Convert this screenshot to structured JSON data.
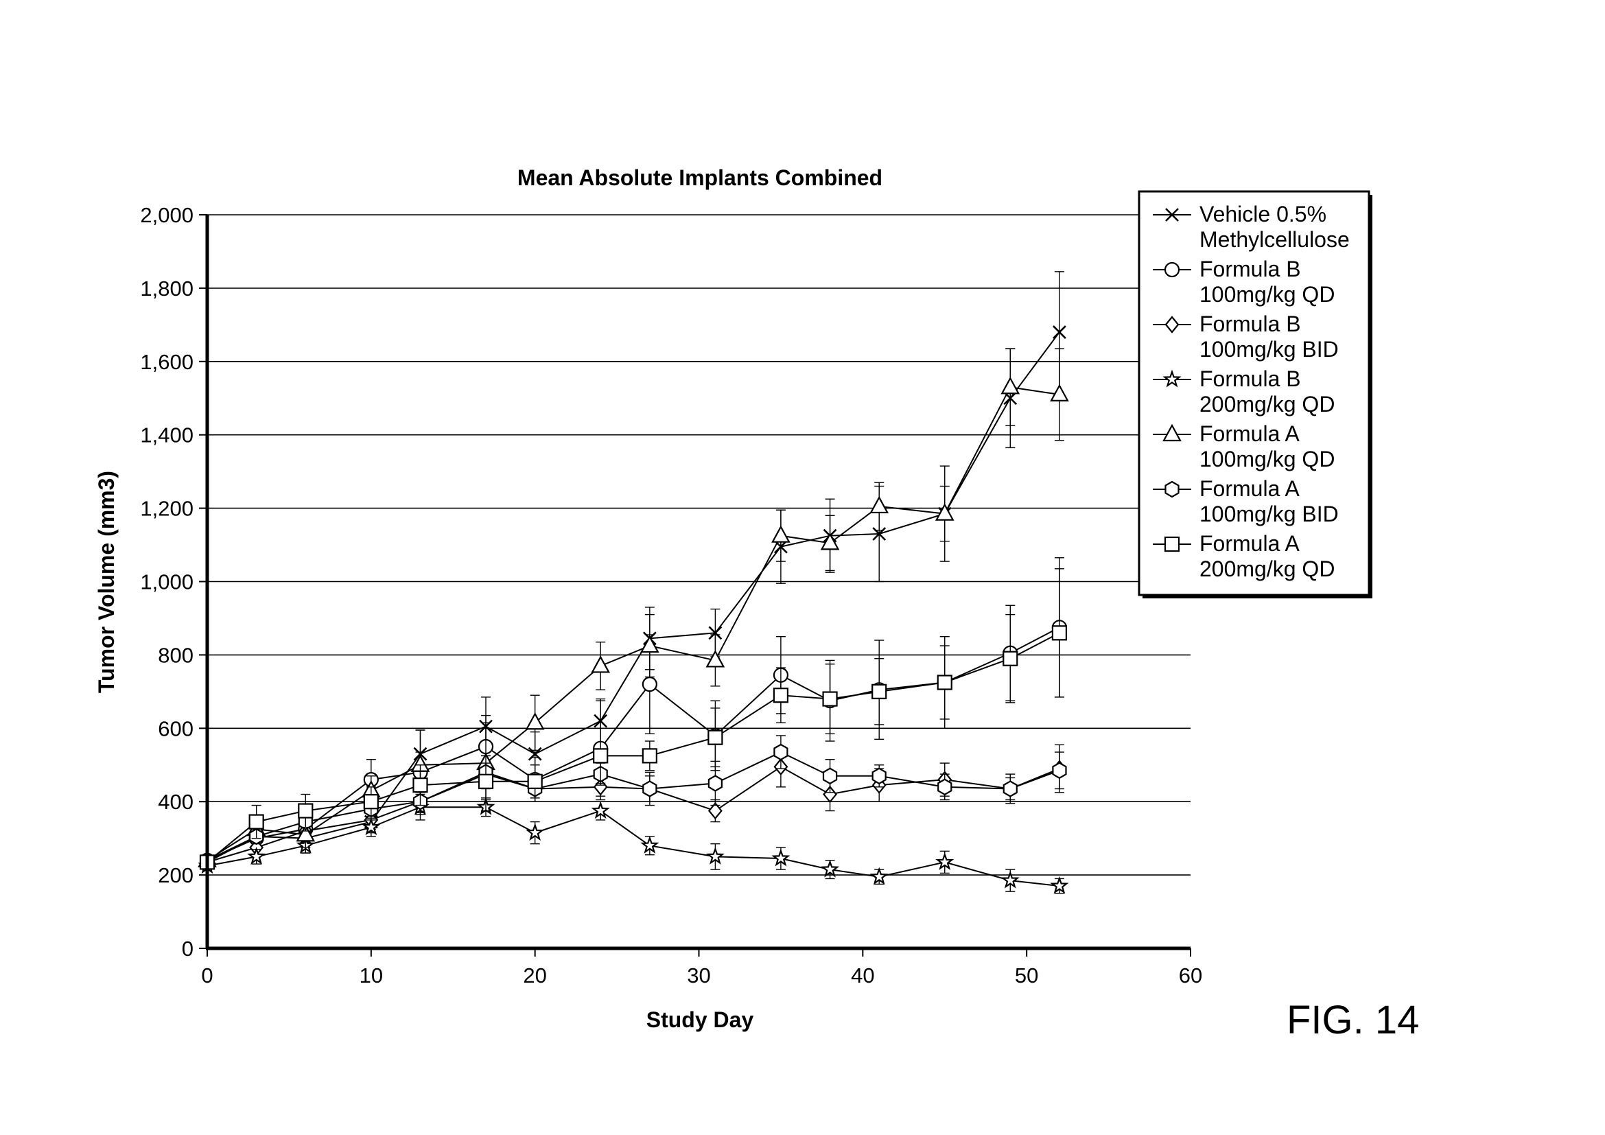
{
  "figure_label": "FIG. 14",
  "chart_data": {
    "type": "line",
    "title": "Mean Absolute Implants Combined",
    "xlabel": "Study Day",
    "ylabel": "Tumor Volume (mm3)",
    "xlim": [
      0,
      60
    ],
    "ylim": [
      0,
      2000
    ],
    "x_ticks": [
      0,
      10,
      20,
      30,
      40,
      50,
      60
    ],
    "x_tick_labels": [
      "0",
      "10",
      "20",
      "30",
      "40",
      "50",
      "60"
    ],
    "y_ticks": [
      0,
      200,
      400,
      600,
      800,
      1000,
      1200,
      1400,
      1600,
      1800,
      2000
    ],
    "y_tick_labels": [
      "0",
      "200",
      "400",
      "600",
      "800",
      "1,000",
      "1,200",
      "1,400",
      "1,600",
      "1,800",
      "2,000"
    ],
    "grid": "horizontal",
    "legend_position": "top-right",
    "x": [
      0,
      3,
      6,
      10,
      13,
      17,
      20,
      24,
      27,
      31,
      35,
      38,
      41,
      45,
      49,
      52
    ],
    "series": [
      {
        "name": "Vehicle 0.5% Methylcellulose",
        "legend_lines": [
          "Vehicle 0.5%",
          "Methylcellulose"
        ],
        "marker": "x",
        "values": [
          235,
          305,
          300,
          345,
          530,
          605,
          530,
          620,
          845,
          860,
          1095,
          1125,
          1130,
          1185,
          1500,
          1680
        ],
        "errors": [
          12,
          30,
          40,
          30,
          65,
          80,
          60,
          60,
          85,
          65,
          100,
          100,
          130,
          130,
          135,
          165
        ]
      },
      {
        "name": "Formula B 100mg/kg QD",
        "legend_lines": [
          "Formula B",
          "100mg/kg QD"
        ],
        "marker": "circle",
        "values": [
          240,
          300,
          325,
          460,
          480,
          550,
          460,
          545,
          720,
          580,
          745,
          675,
          705,
          725,
          805,
          875
        ],
        "errors": [
          12,
          25,
          35,
          55,
          55,
          65,
          60,
          130,
          135,
          95,
          105,
          110,
          135,
          125,
          130,
          190
        ]
      },
      {
        "name": "Formula B 100mg/kg BID",
        "legend_lines": [
          "Formula B",
          "100mg/kg BID"
        ],
        "marker": "diamond",
        "values": [
          235,
          275,
          320,
          350,
          400,
          475,
          435,
          440,
          435,
          375,
          495,
          420,
          445,
          460,
          435,
          490
        ],
        "errors": [
          12,
          20,
          25,
          25,
          30,
          35,
          35,
          35,
          45,
          30,
          55,
          45,
          45,
          45,
          40,
          65
        ]
      },
      {
        "name": "Formula B 200mg/kg QD",
        "legend_lines": [
          "Formula B",
          "200mg/kg QD"
        ],
        "marker": "star",
        "values": [
          225,
          250,
          280,
          330,
          385,
          385,
          315,
          375,
          280,
          250,
          245,
          215,
          195,
          235,
          185,
          170
        ],
        "errors": [
          12,
          20,
          20,
          25,
          35,
          25,
          30,
          25,
          25,
          35,
          30,
          25,
          20,
          30,
          30,
          20
        ]
      },
      {
        "name": "Formula A 100mg/kg QD",
        "legend_lines": [
          "Formula A",
          "100mg/kg QD"
        ],
        "marker": "triangle",
        "values": [
          240,
          325,
          310,
          430,
          500,
          505,
          615,
          770,
          825,
          785,
          1125,
          1105,
          1205,
          1185,
          1530,
          1510
        ],
        "errors": [
          12,
          25,
          35,
          40,
          95,
          130,
          75,
          65,
          85,
          70,
          70,
          75,
          65,
          75,
          105,
          125
        ]
      },
      {
        "name": "Formula A 100mg/kg BID",
        "legend_lines": [
          "Formula A",
          "100mg/kg BID"
        ],
        "marker": "hexagon",
        "values": [
          240,
          305,
          345,
          380,
          400,
          480,
          435,
          475,
          435,
          450,
          535,
          470,
          470,
          440,
          435,
          485
        ],
        "errors": [
          12,
          20,
          25,
          30,
          35,
          45,
          35,
          30,
          35,
          60,
          45,
          45,
          30,
          35,
          30,
          50
        ]
      },
      {
        "name": "Formula A 200mg/kg QD",
        "legend_lines": [
          "Formula A",
          "200mg/kg QD"
        ],
        "marker": "square",
        "values": [
          235,
          345,
          375,
          400,
          445,
          455,
          455,
          525,
          525,
          575,
          690,
          680,
          700,
          725,
          790,
          860
        ],
        "errors": [
          12,
          45,
          45,
          40,
          55,
          50,
          45,
          75,
          40,
          80,
          75,
          95,
          90,
          100,
          120,
          175
        ]
      }
    ]
  }
}
